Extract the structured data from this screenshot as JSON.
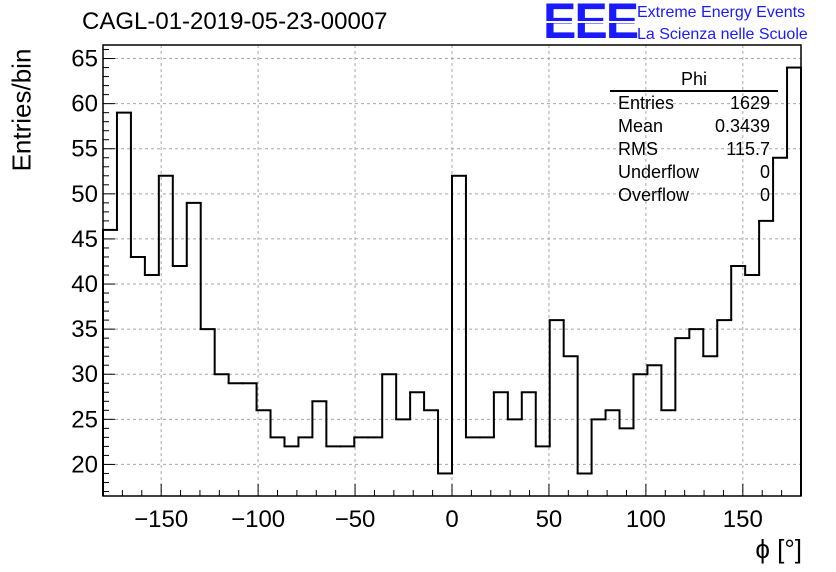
{
  "title": "CAGL-01-2019-05-23-00007",
  "logo": {
    "mark": "EEE",
    "line1": "Extreme Energy Events",
    "line2": "La Scienza nelle Scuole",
    "color": "#1a1aff"
  },
  "stats_box": {
    "title": "Phi",
    "rows": [
      {
        "key": "Entries",
        "value": "1629"
      },
      {
        "key": "Mean",
        "value": "0.3439"
      },
      {
        "key": "RMS",
        "value": "115.7"
      },
      {
        "key": "Underflow",
        "value": "0"
      },
      {
        "key": "Overflow",
        "value": "0"
      }
    ]
  },
  "chart_data": {
    "type": "bar",
    "style": "step-histogram",
    "title": "CAGL-01-2019-05-23-00007",
    "xlabel": "ϕ [°]",
    "ylabel": "Entries/bin",
    "xlim": [
      -180,
      180
    ],
    "ylim": [
      16.5,
      66.5
    ],
    "bin_width": 7.2,
    "x_ticks": [
      -150,
      -100,
      -50,
      0,
      50,
      100,
      150
    ],
    "x_tick_labels": [
      "−150",
      "−100",
      "−50",
      "0",
      "50",
      "100",
      "150"
    ],
    "y_ticks": [
      20,
      25,
      30,
      35,
      40,
      45,
      50,
      55,
      60,
      65
    ],
    "y_tick_labels": [
      "20",
      "25",
      "30",
      "35",
      "40",
      "45",
      "50",
      "55",
      "60",
      "65"
    ],
    "grid": true,
    "legend": "top-right",
    "values": [
      46,
      59,
      43,
      41,
      52,
      42,
      49,
      35,
      30,
      29,
      29,
      26,
      23,
      22,
      23,
      27,
      22,
      22,
      23,
      23,
      30,
      25,
      28,
      26,
      19,
      52,
      23,
      23,
      28,
      25,
      28,
      22,
      36,
      32,
      19,
      25,
      26,
      24,
      30,
      31,
      26,
      34,
      35,
      32,
      36,
      42,
      41,
      47,
      54,
      64
    ]
  }
}
